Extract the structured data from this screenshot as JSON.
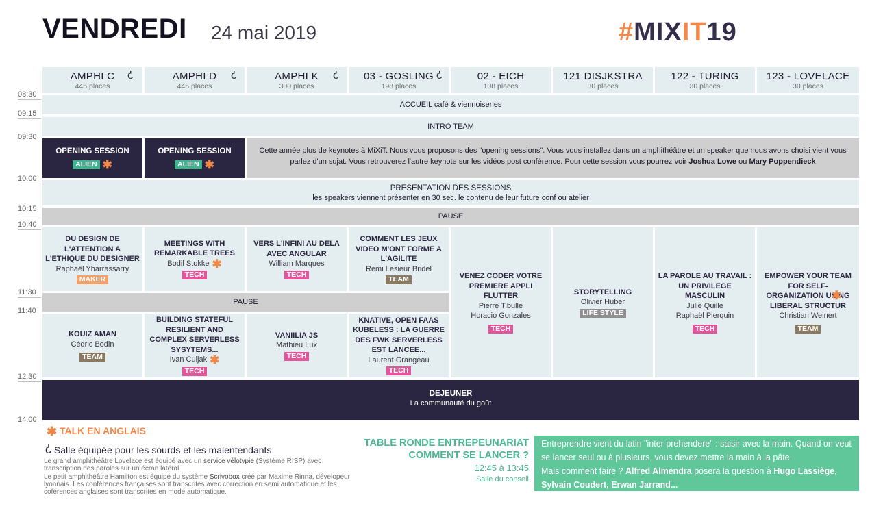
{
  "header": {
    "day": "VENDREDI",
    "date": "24 mai 2019",
    "logo_hash": "#",
    "logo_mix": "MIX",
    "logo_it": "IT",
    "logo_num": "19"
  },
  "rooms": [
    {
      "name": "AMPHI C",
      "capacity": "445 places",
      "hearing": true
    },
    {
      "name": "AMPHI D",
      "capacity": "445 places",
      "hearing": true
    },
    {
      "name": "AMPHI K",
      "capacity": "300 places",
      "hearing": true
    },
    {
      "name": "03 - GOSLING",
      "capacity": "198 places",
      "hearing": true
    },
    {
      "name": "02 - EICH",
      "capacity": "108 places",
      "hearing": false
    },
    {
      "name": "121 DISJKSTRA",
      "capacity": "30 places",
      "hearing": false
    },
    {
      "name": "122 - TURING",
      "capacity": "30 places",
      "hearing": false
    },
    {
      "name": "123 - LOVELACE",
      "capacity": "30 places",
      "hearing": false
    }
  ],
  "times": [
    "08:30",
    "09:15",
    "09:30",
    "10:00",
    "10:15",
    "10:40",
    "11:30",
    "11:40",
    "12:30",
    "14:00"
  ],
  "bands": {
    "accueil": "ACCUEIL café & viennoiseries",
    "intro": "INTRO TEAM",
    "presentation_title": "PRESENTATION DES SESSIONS",
    "presentation_sub": "les speakers viennent présenter en 30 sec. le contenu de leur future conf ou atelier",
    "pause1": "PAUSE",
    "pause2": "PAUSE",
    "dejeuner_title": "DEJEUNER",
    "dejeuner_sub": "La communauté du goût"
  },
  "opening": {
    "a_title": "OPENING SESSION",
    "a_tag": "ALIEN",
    "b_title": "OPENING SESSION",
    "b_tag": "ALIEN",
    "text": "Cette année plus de keynotes à MiXiT. Nous vous proposons des \"opening sessions\". Vous vous installez dans un amphithéâtre et un speaker que nous avons choisi vient vous parlez d'un sujat. Vous retrouverez l'autre keynote sur les vidéos post conférence. Pour cette session vous pourrez voir",
    "speaker1": "Joshua Lowe",
    "between": "ou",
    "speaker2": "Mary Poppendieck"
  },
  "sessions_morning": [
    {
      "title": "DU DESIGN DE L'ATTENTION A L'ETHIQUE DU DESIGNER",
      "speaker": "Raphaël Yharrassarry",
      "tag": "MAKER"
    },
    {
      "title": "MEETINGS WITH REMARKABLE TREES",
      "speaker": "Bodil Stokke",
      "tag": "TECH"
    },
    {
      "title": "VERS L'INFINI AU DELA AVEC ANGULAR",
      "speaker": "William Marques",
      "tag": "TECH"
    },
    {
      "title": "COMMENT LES JEUX VIDEO M'ONT FORME A L'AGILITE",
      "speaker": "Remi Lesieur Bridel",
      "tag": "TEAM"
    }
  ],
  "sessions_long": [
    {
      "title": "VENEZ CODER VOTRE PREMIERE APPLI FLUTTER",
      "speaker": "Pierre Tibulle",
      "speaker2": "Horacio Gonzales",
      "tag": "TECH"
    },
    {
      "title": "STORYTELLING",
      "speaker": "Olivier Huber",
      "tag": "LIFE STYLE"
    },
    {
      "title": "LA PAROLE AU TRAVAIL : UN PRIVILEGE MASCULIN",
      "speaker": "Julie Quillé",
      "speaker2": "Raphaël Pierquin",
      "tag": "TECH"
    },
    {
      "title": "EMPOWER YOUR TEAM FOR SELF-ORGANIZATION USING LIBERAL STRUCTUR",
      "speaker": "Christian Weinert",
      "tag": "TEAM"
    }
  ],
  "sessions_late": [
    {
      "title": "KOUIZ AMAN",
      "speaker": "Cédric Bodin",
      "tag": "TEAM"
    },
    {
      "title": "BUILDING STATEFUL RESILIENT AND COMPLEX SERVERLESS SYSYTEMS...",
      "speaker": "Ivan Culjak",
      "tag": "TECH"
    },
    {
      "title": "VANIILIA JS",
      "speaker": "Mathieu Lux",
      "tag": "TECH"
    },
    {
      "title": "KNATIVE, OPEN FAAS KUBELESS : LA GUERRE DES FWK SERVERLESS EST LANCEE...",
      "speaker": "Laurent Grangeau",
      "tag": "TECH"
    }
  ],
  "legend": {
    "english": "TALK EN ANGLAIS",
    "hearing": "Salle équipée pour les sourds et les malentendants",
    "note_1": "Le grand amphithéâtre Lovelace est équipé avec un",
    "note_velo": "service vélotypie",
    "note_2": "(Système RISP) avec transcription des paroles sur un écran latéral",
    "note_3": "Le petit amphithéâtre Hamilton est équipé du système",
    "note_scrivo": "Scrivobox",
    "note_4": "créé par Maxime Rinna, dévelopeur lyonnais. Les conférences françaises sont transcrites avec correction en semi automatique et les coférences anglaises sont transcrites en mode automatique."
  },
  "table_ronde": {
    "title_1": "TABLE RONDE ENTREPEUNARIAT",
    "title_2": "COMMENT SE LANCER ?",
    "time": "12:45 à 13:45",
    "room": "Salle du conseil",
    "text_1": "Entreprendre vient du latin \"inter prehendere\" : saisir avec la main. Quand on veut se lancer seul ou à plusieurs, vous devez mettre la main à la pâte.",
    "text_2": "Mais comment faire ?",
    "name_1": "Alfred Almendra",
    "text_3": "posera la question à",
    "name_2": "Hugo Lassiège, Sylvain Coudert, Erwan Jarrand..."
  },
  "colors": {
    "accent_orange": "#f0884a",
    "dark": "#2a2540",
    "light": "#e4eef1",
    "green": "#5fc79a",
    "tech": "#e3559a",
    "team": "#8a7a62"
  }
}
